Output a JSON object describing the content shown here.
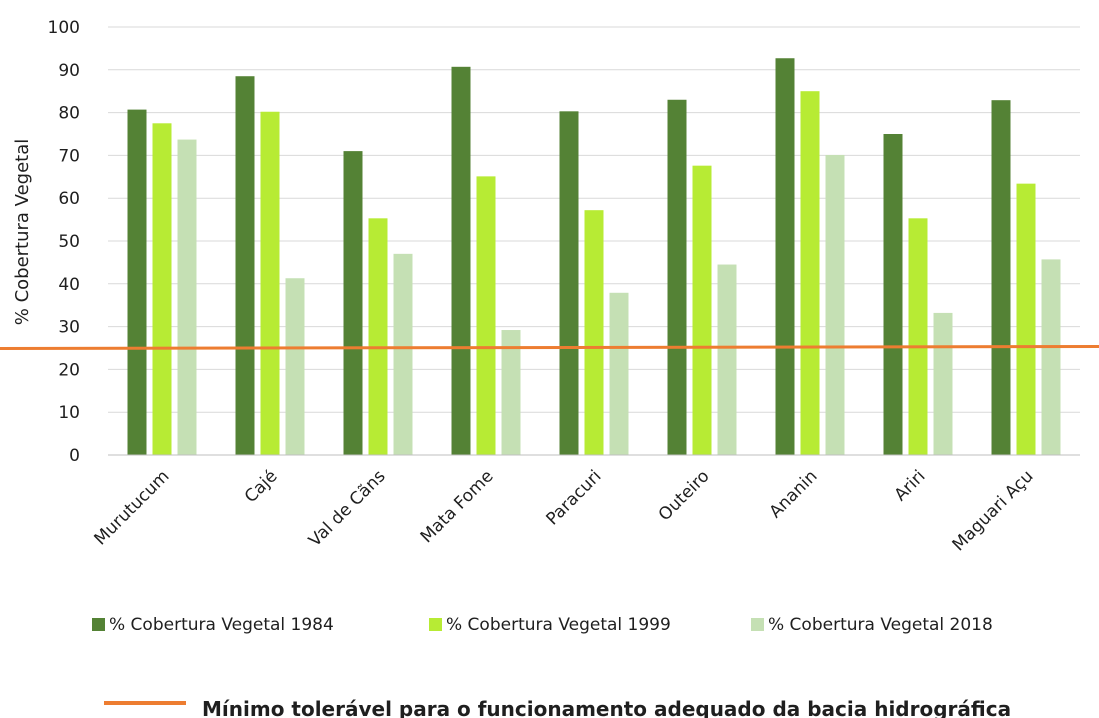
{
  "chart_data": {
    "type": "bar",
    "ylabel": "% Cobertura Vegetal",
    "xlabel": "",
    "ylim": [
      0,
      100
    ],
    "yticks": [
      0,
      10,
      20,
      30,
      40,
      50,
      60,
      70,
      80,
      90,
      100
    ],
    "grid": true,
    "legend_position": "bottom",
    "categories": [
      "Murutucum",
      "Cajé",
      "Val de Cãns",
      "Mata Fome",
      "Paracuri",
      "Outeiro",
      "Ananin",
      "Ariri",
      "Maguari Açu"
    ],
    "series": [
      {
        "name": "% Cobertura Vegetal  1984",
        "color": "#548235",
        "values": [
          80.7,
          88.5,
          71.0,
          90.7,
          80.3,
          83.0,
          92.7,
          75.0,
          82.9
        ]
      },
      {
        "name": "% Cobertura Vegetal 1999",
        "color": "#b7eb34",
        "values": [
          77.5,
          80.2,
          55.3,
          65.1,
          57.2,
          67.6,
          85.0,
          55.3,
          63.4
        ]
      },
      {
        "name": "% Cobertura Vegetal 2018",
        "color": "#c5e0b4",
        "values": [
          73.7,
          41.3,
          47.0,
          29.2,
          37.9,
          44.5,
          70.1,
          33.2,
          45.7
        ]
      }
    ],
    "reference_line": {
      "label": "Mínimo tolerável para o funcionamento adequado da bacia hidrográfica",
      "value": 25,
      "color": "#ed7d31"
    }
  }
}
